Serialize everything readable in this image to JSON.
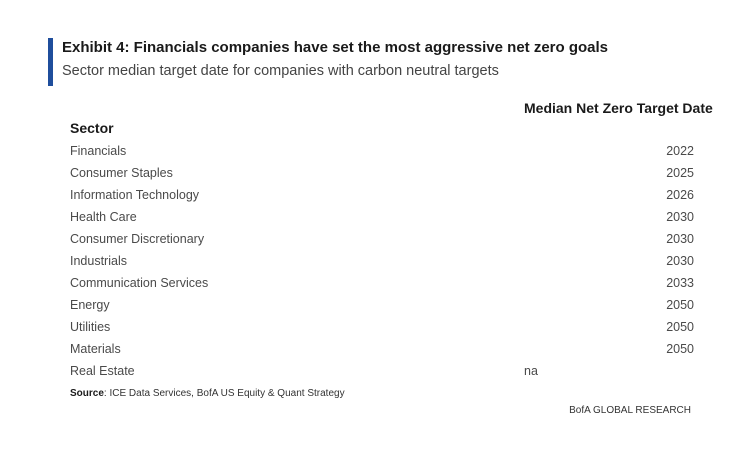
{
  "header": {
    "title": "Exhibit 4: Financials companies have set the most aggressive net zero goals",
    "subtitle": "Sector median target date for companies with carbon neutral targets",
    "accent_color": "#1f4e9c"
  },
  "table": {
    "col_sector": "Sector",
    "col_target": "Median Net Zero Target Date",
    "rows": [
      {
        "sector": "Financials",
        "value": "2022"
      },
      {
        "sector": "Consumer Staples",
        "value": "2025"
      },
      {
        "sector": "Information Technology",
        "value": "2026"
      },
      {
        "sector": "Health Care",
        "value": "2030"
      },
      {
        "sector": "Consumer Discretionary",
        "value": "2030"
      },
      {
        "sector": "Industrials",
        "value": "2030"
      },
      {
        "sector": "Communication Services",
        "value": "2033"
      },
      {
        "sector": "Energy",
        "value": "2050"
      },
      {
        "sector": "Utilities",
        "value": "2050"
      },
      {
        "sector": "Materials",
        "value": "2050"
      },
      {
        "sector": "Real Estate",
        "value": "na"
      }
    ]
  },
  "footer": {
    "source_label": "Source",
    "source_text": ": ICE Data Services, BofA US Equity & Quant Strategy",
    "brand": "BofA GLOBAL RESEARCH"
  }
}
